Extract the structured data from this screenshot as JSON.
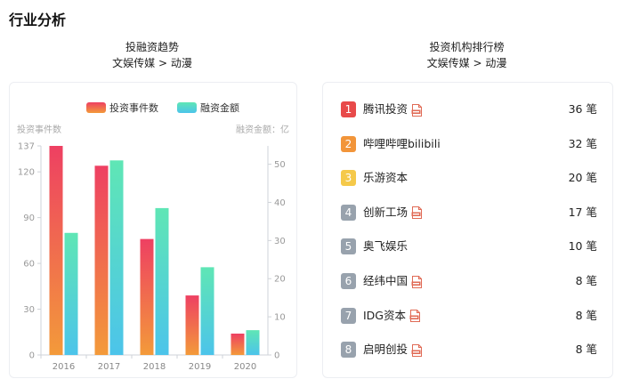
{
  "page_title": "行业分析",
  "left_panel": {
    "title": "投融资趋势",
    "subtitle": "文娱传媒 > 动漫"
  },
  "right_panel": {
    "title": "投资机构排行榜",
    "subtitle": "文娱传媒 > 动漫"
  },
  "chart_data": {
    "type": "bar",
    "categories": [
      "2016",
      "2017",
      "2018",
      "2019",
      "2020"
    ],
    "series": [
      {
        "name": "投资事件数",
        "axis": "left",
        "values": [
          137,
          124,
          76,
          39,
          14
        ],
        "colors": [
          "#ee4062",
          "#f39a3a"
        ]
      },
      {
        "name": "融资金额",
        "axis": "right",
        "values": [
          32,
          51,
          38.5,
          23,
          6.5
        ],
        "colors": [
          "#5fe6b5",
          "#4cc4ea"
        ]
      }
    ],
    "y_left": {
      "label": "投资事件数",
      "ticks": [
        0,
        30,
        60,
        90,
        120,
        137
      ],
      "range": [
        0,
        137
      ]
    },
    "y_right": {
      "label": "融资金额：亿",
      "ticks": [
        0,
        10,
        20,
        30,
        40,
        50
      ],
      "range": [
        0,
        54.8
      ]
    },
    "legend_position": "top-center"
  },
  "ranking": {
    "items": [
      {
        "rank": "1",
        "name": "腾讯投资",
        "count": "36 笔",
        "has_report": true,
        "color": "#e84a4a"
      },
      {
        "rank": "2",
        "name": "哔哩哔哩bilibili",
        "count": "32 笔",
        "has_report": false,
        "color": "#f2953a"
      },
      {
        "rank": "3",
        "name": "乐游资本",
        "count": "20 笔",
        "has_report": false,
        "color": "#f5c94a"
      },
      {
        "rank": "4",
        "name": "创新工场",
        "count": "17 笔",
        "has_report": true,
        "color": "#98a2ad"
      },
      {
        "rank": "5",
        "name": "奥飞娱乐",
        "count": "10 笔",
        "has_report": false,
        "color": "#98a2ad"
      },
      {
        "rank": "6",
        "name": "经纬中国",
        "count": "8 笔",
        "has_report": true,
        "color": "#98a2ad"
      },
      {
        "rank": "7",
        "name": "IDG资本",
        "count": "8 笔",
        "has_report": true,
        "color": "#98a2ad"
      },
      {
        "rank": "8",
        "name": "启明创投",
        "count": "8 笔",
        "has_report": true,
        "color": "#98a2ad"
      }
    ],
    "report_icon": "pdf-file-icon"
  }
}
